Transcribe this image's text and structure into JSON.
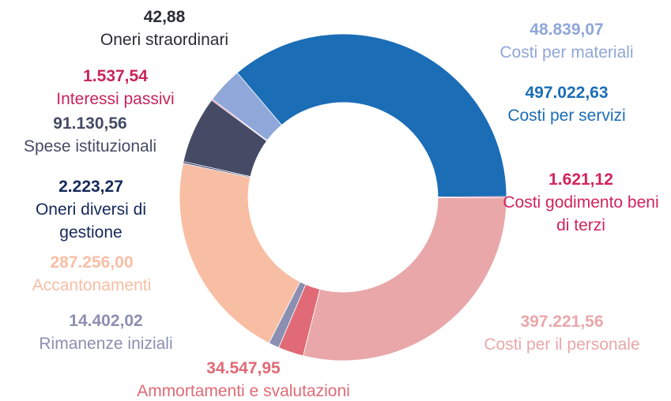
{
  "chart_data": {
    "type": "donut",
    "categories": [
      "Costi per servizi",
      "Costi godimento beni di terzi",
      "Costi per il personale",
      "Ammortamenti e svalutazioni",
      "Rimanenze iniziali",
      "Accantonamenti",
      "Oneri diversi di gestione",
      "Spese istituzionali",
      "Interessi passivi",
      "Oneri straordinari",
      "Costi per materiali"
    ],
    "values": [
      497022.63,
      1621.12,
      397221.56,
      34547.95,
      14402.02,
      287256.0,
      2223.27,
      91130.56,
      1537.54,
      42.88,
      48839.07
    ],
    "value_labels": [
      "497.022,63",
      "1.621,12",
      "397.221,56",
      "34.547,95",
      "14.402,02",
      "287.256,00",
      "2.223,27",
      "91.130,56",
      "1.537,54",
      "42,88",
      "48.839,07"
    ],
    "colors": [
      "#1b6db6",
      "#d2235c",
      "#e9a7a9",
      "#e06a76",
      "#8b8fb1",
      "#f8bea4",
      "#15285a",
      "#454b65",
      "#c8245a",
      "#2b2b36",
      "#8fa7d9"
    ]
  }
}
